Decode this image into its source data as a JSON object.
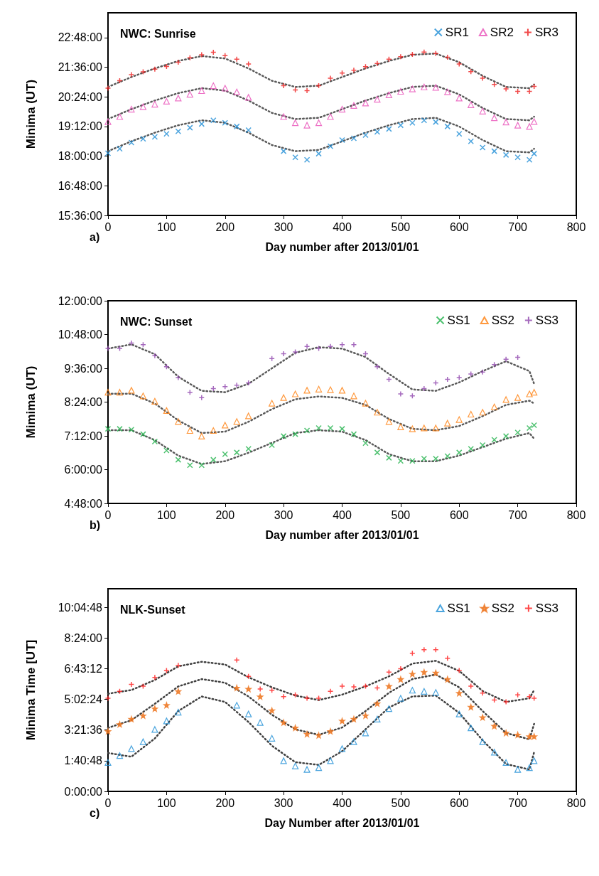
{
  "chart_data": [
    {
      "type": "scatter",
      "title": "NWC: Sunrise",
      "xlabel": "Day number after 2013/01/01",
      "ylabel": "Minima (UT)",
      "annotations": [
        "a)"
      ],
      "legend": "top right",
      "xlim": [
        0,
        800
      ],
      "xticks": [
        0,
        100,
        200,
        300,
        400,
        500,
        600,
        700,
        800
      ],
      "ylim": [
        15.6,
        23.8
      ],
      "yticks": [
        {
          "value": 15.6,
          "label": "15:36:00"
        },
        {
          "value": 16.8,
          "label": "16:48:00"
        },
        {
          "value": 18,
          "label": "18:00:00"
        },
        {
          "value": 19.2,
          "label": "19:12:00"
        },
        {
          "value": 20.4,
          "label": "20:24:00"
        },
        {
          "value": 21.6,
          "label": "21:36:00"
        },
        {
          "value": 22.8,
          "label": "22:48:00"
        }
      ],
      "x": [
        0,
        20,
        40,
        60,
        80,
        100,
        120,
        140,
        160,
        180,
        200,
        220,
        240,
        260,
        280,
        300,
        320,
        340,
        360,
        380,
        400,
        420,
        440,
        460,
        480,
        500,
        520,
        540,
        560,
        580,
        600,
        620,
        640,
        660,
        680,
        700,
        720,
        728
      ],
      "series": [
        {
          "name": "SR1",
          "color": "#1f8dd6",
          "marker": "x",
          "values": [
            18.12,
            18.3,
            18.55,
            18.7,
            18.78,
            18.9,
            19.0,
            19.15,
            19.3,
            19.45,
            19.35,
            19.2,
            19.05,
            null,
            null,
            18.2,
            17.95,
            17.85,
            18.1,
            18.4,
            18.65,
            18.72,
            18.85,
            18.98,
            19.1,
            19.25,
            19.35,
            19.45,
            19.38,
            19.2,
            18.9,
            18.6,
            18.35,
            18.2,
            18.05,
            17.95,
            17.85,
            18.1
          ]
        },
        {
          "name": "SR2",
          "color": "#e84fb8",
          "marker": "triangle",
          "values": [
            19.39,
            19.6,
            19.9,
            20.0,
            20.1,
            20.22,
            20.35,
            20.5,
            20.65,
            20.85,
            20.75,
            20.6,
            20.38,
            null,
            null,
            19.6,
            19.35,
            19.25,
            19.35,
            19.6,
            19.9,
            20.05,
            20.15,
            20.3,
            20.48,
            20.62,
            20.72,
            20.8,
            20.78,
            20.6,
            20.35,
            20.08,
            19.82,
            19.55,
            19.38,
            19.25,
            19.2,
            19.4
          ]
        },
        {
          "name": "SR3",
          "color": "#ee1c1c",
          "marker": "cross",
          "values": [
            20.75,
            21.05,
            21.3,
            21.41,
            21.52,
            21.63,
            21.8,
            21.98,
            22.1,
            22.2,
            22.07,
            21.92,
            21.73,
            null,
            null,
            20.85,
            20.68,
            20.65,
            20.85,
            21.15,
            21.36,
            21.48,
            21.62,
            21.75,
            21.92,
            22.02,
            22.12,
            22.21,
            22.15,
            22.0,
            21.73,
            21.42,
            21.15,
            20.9,
            20.72,
            20.62,
            20.62,
            20.82
          ]
        },
        {
          "type": "line",
          "color": "#595959",
          "marker": "none",
          "line_style": "dotted",
          "x": [
            0,
            40,
            80,
            120,
            160,
            200,
            240,
            280,
            320,
            360,
            400,
            440,
            480,
            520,
            560,
            600,
            640,
            680,
            720,
            728
          ],
          "values": [
            18.2,
            18.6,
            18.95,
            19.25,
            19.45,
            19.35,
            18.95,
            18.45,
            18.2,
            18.25,
            18.6,
            18.95,
            19.25,
            19.5,
            19.55,
            19.2,
            18.65,
            18.2,
            18.15,
            18.3
          ]
        },
        {
          "type": "line",
          "color": "#595959",
          "marker": "none",
          "line_style": "dotted",
          "x": [
            0,
            40,
            80,
            120,
            160,
            200,
            240,
            280,
            320,
            360,
            400,
            440,
            480,
            520,
            560,
            600,
            640,
            680,
            720,
            728
          ],
          "values": [
            19.5,
            19.9,
            20.25,
            20.55,
            20.75,
            20.65,
            20.25,
            19.75,
            19.5,
            19.55,
            19.9,
            20.25,
            20.55,
            20.8,
            20.85,
            20.5,
            19.95,
            19.5,
            19.45,
            19.6
          ]
        },
        {
          "type": "line",
          "color": "#595959",
          "marker": "none",
          "line_style": "dotted",
          "x": [
            0,
            40,
            80,
            120,
            160,
            200,
            240,
            280,
            320,
            360,
            400,
            440,
            480,
            520,
            560,
            600,
            640,
            680,
            720,
            728
          ],
          "values": [
            20.8,
            21.2,
            21.55,
            21.85,
            22.05,
            21.95,
            21.55,
            21.05,
            20.8,
            20.85,
            21.2,
            21.55,
            21.85,
            22.1,
            22.15,
            21.8,
            21.25,
            20.8,
            20.75,
            20.9
          ]
        }
      ]
    },
    {
      "type": "scatter",
      "title": "NWC: Sunset",
      "xlabel": "Day number after 2013/01/01",
      "ylabel": "Mimima (UT)",
      "annotations": [
        "b)"
      ],
      "legend": "top right",
      "xlim": [
        0,
        800
      ],
      "xticks": [
        0,
        100,
        200,
        300,
        400,
        500,
        600,
        700,
        800
      ],
      "ylim": [
        4.8,
        12
      ],
      "yticks": [
        {
          "value": 4.8,
          "label": "4:48:00"
        },
        {
          "value": 6,
          "label": "6:00:00"
        },
        {
          "value": 7.2,
          "label": "7:12:00"
        },
        {
          "value": 8.4,
          "label": "8:24:00"
        },
        {
          "value": 9.6,
          "label": "9:36:00"
        },
        {
          "value": 10.8,
          "label": "10:48:00"
        },
        {
          "value": 12,
          "label": "12:00:00"
        }
      ],
      "x": [
        0,
        20,
        40,
        60,
        80,
        100,
        120,
        140,
        160,
        180,
        200,
        220,
        240,
        260,
        280,
        300,
        320,
        340,
        360,
        380,
        400,
        420,
        440,
        460,
        480,
        500,
        520,
        540,
        560,
        580,
        600,
        620,
        640,
        660,
        680,
        700,
        720,
        728
      ],
      "series": [
        {
          "name": "SS1",
          "color": "#22b14c",
          "marker": "x",
          "values": [
            7.45,
            7.45,
            7.42,
            7.26,
            7.0,
            6.68,
            6.35,
            6.16,
            6.16,
            6.35,
            6.55,
            6.61,
            6.74,
            null,
            6.87,
            7.19,
            7.26,
            7.39,
            7.48,
            7.48,
            7.45,
            7.26,
            6.94,
            6.61,
            6.42,
            6.31,
            6.31,
            6.39,
            6.39,
            6.48,
            6.61,
            6.74,
            6.87,
            7.06,
            7.19,
            7.32,
            7.48,
            7.58
          ]
        },
        {
          "name": "SS2",
          "color": "#ff7f0e",
          "marker": "triangle",
          "values": [
            8.75,
            8.75,
            8.82,
            8.62,
            8.43,
            8.1,
            7.71,
            7.39,
            7.19,
            7.39,
            7.58,
            7.71,
            7.91,
            null,
            8.36,
            8.56,
            8.69,
            8.82,
            8.86,
            8.84,
            8.82,
            8.62,
            8.36,
            8.04,
            7.71,
            7.52,
            7.45,
            7.48,
            7.48,
            7.65,
            7.78,
            7.97,
            8.04,
            8.23,
            8.49,
            8.56,
            8.69,
            8.75
          ]
        },
        {
          "name": "SS3",
          "color": "#8e44ad",
          "marker": "cross",
          "values": [
            10.31,
            10.31,
            10.5,
            10.44,
            10.05,
            9.66,
            9.27,
            8.75,
            8.56,
            8.88,
            8.95,
            9.0,
            9.08,
            null,
            9.95,
            10.12,
            10.18,
            10.38,
            10.31,
            10.38,
            10.44,
            10.44,
            10.12,
            9.66,
            9.21,
            8.69,
            8.62,
            8.88,
            9.08,
            9.21,
            9.27,
            9.4,
            9.47,
            9.73,
            9.92,
            9.99,
            null,
            null
          ]
        },
        {
          "type": "line",
          "color": "#595959",
          "marker": "none",
          "line_style": "dotted",
          "x": [
            0,
            40,
            80,
            120,
            160,
            200,
            240,
            280,
            320,
            360,
            400,
            440,
            480,
            520,
            560,
            600,
            640,
            680,
            720,
            728
          ],
          "values": [
            7.4,
            7.4,
            7.05,
            6.5,
            6.2,
            6.3,
            6.6,
            6.95,
            7.3,
            7.4,
            7.35,
            7.05,
            6.55,
            6.3,
            6.3,
            6.5,
            6.8,
            7.1,
            7.3,
            7.1
          ]
        },
        {
          "type": "line",
          "color": "#595959",
          "marker": "none",
          "line_style": "dotted",
          "x": [
            0,
            40,
            80,
            120,
            160,
            200,
            240,
            280,
            320,
            360,
            400,
            440,
            480,
            520,
            560,
            600,
            640,
            680,
            720,
            728
          ],
          "values": [
            8.7,
            8.7,
            8.35,
            7.75,
            7.3,
            7.35,
            7.7,
            8.15,
            8.5,
            8.6,
            8.55,
            8.3,
            7.8,
            7.45,
            7.4,
            7.55,
            7.9,
            8.3,
            8.45,
            8.35
          ]
        },
        {
          "type": "line",
          "color": "#595959",
          "marker": "none",
          "line_style": "dotted",
          "x": [
            0,
            40,
            80,
            120,
            160,
            200,
            240,
            280,
            320,
            360,
            400,
            440,
            480,
            520,
            560,
            600,
            640,
            680,
            720,
            728
          ],
          "values": [
            10.3,
            10.45,
            10.1,
            9.3,
            8.8,
            8.75,
            9.05,
            9.6,
            10.15,
            10.35,
            10.3,
            10.0,
            9.4,
            8.85,
            8.8,
            9.1,
            9.5,
            9.85,
            9.5,
            9.05
          ]
        }
      ]
    },
    {
      "type": "scatter",
      "title": "NLK-Sunset",
      "xlabel": "Day Number after 2013/01/01",
      "ylabel": "Minima Time [UT]",
      "annotations": [
        "c)"
      ],
      "legend": "top right",
      "xlim": [
        0,
        800
      ],
      "xticks": [
        0,
        100,
        200,
        300,
        400,
        500,
        600,
        700,
        800
      ],
      "ylim": [
        0,
        11.1
      ],
      "yticks": [
        {
          "value": 0,
          "label": "0:00:00"
        },
        {
          "value": 1.68,
          "label": "1:40:48"
        },
        {
          "value": 3.36,
          "label": "3:21:36"
        },
        {
          "value": 5.04,
          "label": "5:02:24"
        },
        {
          "value": 6.72,
          "label": "6:43:12"
        },
        {
          "value": 8.4,
          "label": "8:24:00"
        },
        {
          "value": 10.08,
          "label": "10:04:48"
        }
      ],
      "x": [
        0,
        20,
        40,
        60,
        80,
        100,
        120,
        140,
        160,
        180,
        200,
        220,
        240,
        260,
        280,
        300,
        320,
        340,
        360,
        380,
        400,
        420,
        440,
        460,
        480,
        500,
        520,
        540,
        560,
        580,
        600,
        620,
        640,
        660,
        680,
        700,
        720,
        728
      ],
      "series": [
        {
          "name": "SS1",
          "color": "#1e8fd6",
          "marker": "triangle",
          "values": [
            1.58,
            1.96,
            2.34,
            2.72,
            3.39,
            3.86,
            4.34,
            null,
            null,
            null,
            null,
            4.72,
            4.24,
            3.77,
            2.91,
            1.68,
            1.39,
            1.2,
            1.3,
            1.68,
            2.34,
            2.72,
            3.2,
            3.96,
            4.53,
            5.1,
            5.54,
            5.48,
            5.42,
            null,
            4.24,
            3.48,
            2.72,
            2.15,
            1.58,
            1.2,
            1.3,
            1.68
          ]
        },
        {
          "name": "SS2",
          "color": "#ee7722",
          "marker": "star",
          "values": [
            3.29,
            3.67,
            3.96,
            4.15,
            4.53,
            4.72,
            5.48,
            null,
            null,
            null,
            null,
            5.67,
            5.61,
            5.19,
            4.43,
            3.77,
            3.48,
            3.14,
            3.07,
            3.29,
            3.86,
            3.96,
            4.15,
            4.81,
            5.76,
            6.14,
            6.43,
            6.53,
            6.49,
            6.14,
            5.38,
            4.62,
            4.05,
            3.58,
            3.2,
            3.1,
            3.01,
            3.01
          ]
        },
        {
          "name": "SS3",
          "color": "#ff1a1a",
          "marker": "cross",
          "values": [
            5.1,
            5.48,
            5.86,
            5.76,
            6.24,
            6.62,
            6.9,
            null,
            null,
            null,
            null,
            7.2,
            6.3,
            5.61,
            5.54,
            5.19,
            5.29,
            5.1,
            5.1,
            5.48,
            5.76,
            5.73,
            5.76,
            5.67,
            6.53,
            6.72,
            7.57,
            7.76,
            7.76,
            7.29,
            6.62,
            5.76,
            5.38,
            5.0,
            4.91,
            5.29,
            5.19,
            5.1
          ]
        },
        {
          "type": "line",
          "color": "#404040",
          "marker": "none",
          "line_style": "dotted",
          "x": [
            0,
            40,
            80,
            120,
            160,
            200,
            240,
            280,
            320,
            360,
            400,
            440,
            480,
            520,
            560,
            600,
            640,
            680,
            720,
            728
          ],
          "values": [
            2.1,
            1.9,
            2.9,
            4.4,
            5.2,
            4.9,
            3.8,
            2.5,
            1.6,
            1.45,
            2.2,
            3.4,
            4.6,
            5.2,
            5.25,
            4.3,
            2.8,
            1.5,
            1.2,
            2.15
          ]
        },
        {
          "type": "line",
          "color": "#404040",
          "marker": "none",
          "line_style": "dotted",
          "x": [
            0,
            40,
            80,
            120,
            160,
            200,
            240,
            280,
            320,
            360,
            400,
            440,
            480,
            520,
            560,
            600,
            640,
            680,
            720,
            728
          ],
          "values": [
            3.48,
            3.9,
            4.8,
            5.75,
            6.15,
            5.95,
            5.2,
            4.2,
            3.4,
            3.1,
            3.5,
            4.4,
            5.4,
            6.15,
            6.4,
            5.7,
            4.4,
            3.2,
            2.85,
            3.7
          ]
        },
        {
          "type": "line",
          "color": "#404040",
          "marker": "none",
          "line_style": "dotted",
          "x": [
            0,
            40,
            80,
            120,
            160,
            200,
            240,
            280,
            320,
            360,
            400,
            440,
            480,
            520,
            560,
            600,
            640,
            680,
            720,
            728
          ],
          "values": [
            5.35,
            5.55,
            6.1,
            6.85,
            7.1,
            6.95,
            6.25,
            5.7,
            5.25,
            5.0,
            5.3,
            5.75,
            6.3,
            7.0,
            7.15,
            6.6,
            5.5,
            4.9,
            5.1,
            5.55
          ]
        }
      ]
    }
  ]
}
